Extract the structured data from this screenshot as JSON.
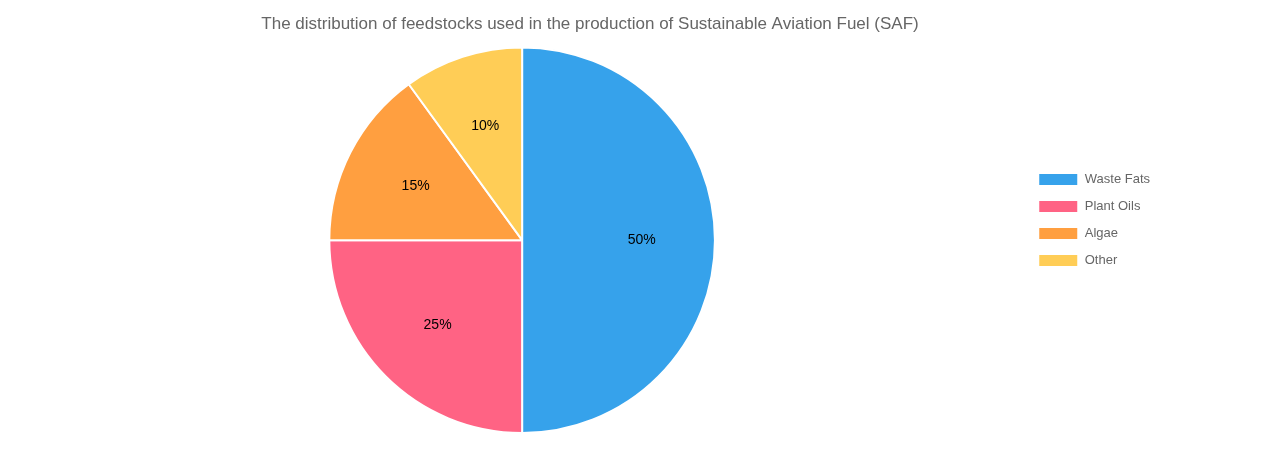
{
  "chart_data": {
    "type": "pie",
    "title": "The distribution of feedstocks used in the production of Sustainable Aviation Fuel (SAF)",
    "categories": [
      "Waste Fats",
      "Plant Oils",
      "Algae",
      "Other"
    ],
    "values": [
      50,
      25,
      15,
      10
    ],
    "value_labels": [
      "50%",
      "25%",
      "15%",
      "10%"
    ],
    "data_labels": true,
    "legend": "right"
  }
}
